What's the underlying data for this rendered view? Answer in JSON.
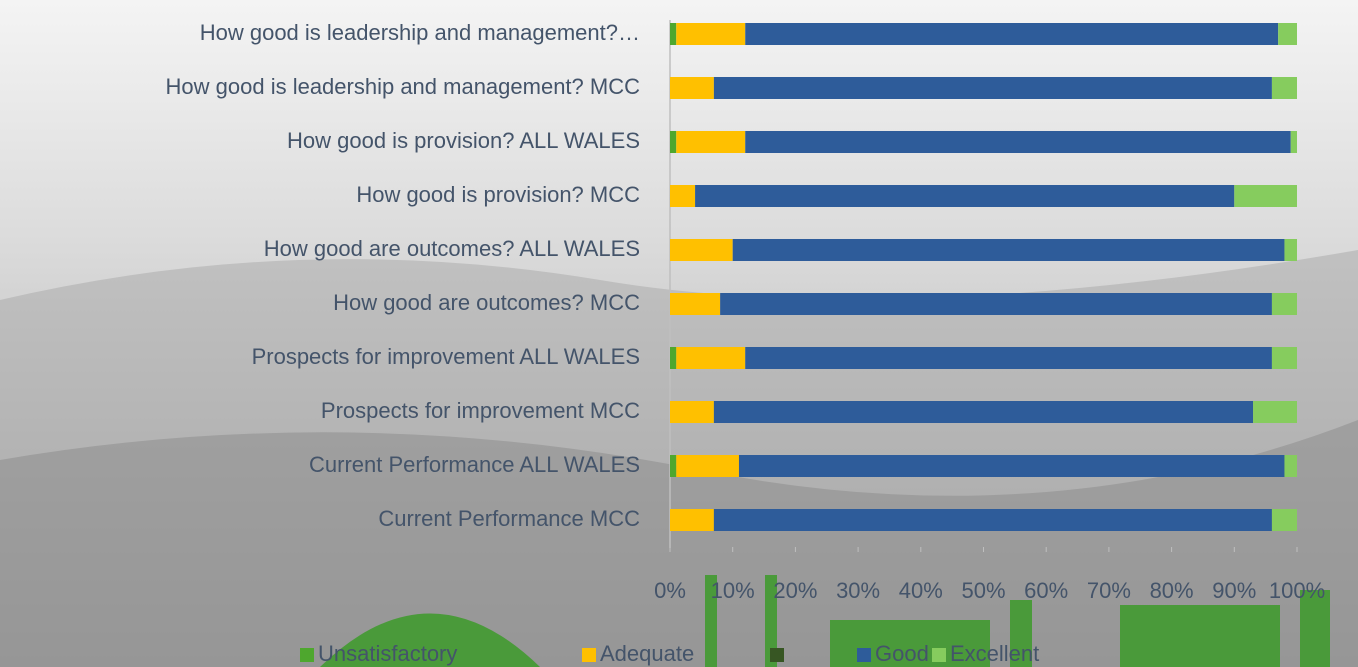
{
  "chart_data": {
    "type": "stacked-bar-horizontal",
    "categories": [
      "How good is leadership and management?…",
      "How good is leadership and management? MCC",
      "How good is provision? ALL WALES",
      "How good is provision? MCC",
      "How good are outcomes? ALL WALES",
      "How good are outcomes? MCC",
      "Prospects for improvement ALL WALES",
      "Prospects for improvement MCC",
      "Current Performance ALL WALES",
      "Current Performance MCC"
    ],
    "series": [
      {
        "name": "Unsatisfactory",
        "color": "#4ea72e",
        "values": [
          1,
          0,
          1,
          0,
          0,
          0,
          1,
          0,
          1,
          0
        ]
      },
      {
        "name": "Adequate",
        "color": "#ffc000",
        "values": [
          11,
          7,
          11,
          4,
          10,
          8,
          11,
          7,
          10,
          7
        ]
      },
      {
        "name": null,
        "color": "#375623",
        "values": [
          0,
          0,
          0,
          0,
          0,
          0,
          0,
          0,
          0,
          0
        ]
      },
      {
        "name": "Good",
        "color": "#2e5c9a",
        "values": [
          85,
          89,
          87,
          86,
          88,
          88,
          84,
          86,
          87,
          89
        ]
      },
      {
        "name": "Excellent",
        "color": "#86cc5e",
        "values": [
          3,
          4,
          1,
          10,
          2,
          4,
          4,
          7,
          2,
          4
        ]
      }
    ],
    "xlim": [
      0,
      100
    ],
    "xticks": [
      {
        "value": 0,
        "label": "0%"
      },
      {
        "value": 10,
        "label": "10%"
      },
      {
        "value": 20,
        "label": "20%"
      },
      {
        "value": 30,
        "label": "30%"
      },
      {
        "value": 40,
        "label": "40%"
      },
      {
        "value": 50,
        "label": "50%"
      },
      {
        "value": 60,
        "label": "60%"
      },
      {
        "value": 70,
        "label": "70%"
      },
      {
        "value": 80,
        "label": "80%"
      },
      {
        "value": 90,
        "label": "90%"
      },
      {
        "value": 100,
        "label": "100%"
      }
    ],
    "grid": false,
    "legend": "bottom"
  }
}
